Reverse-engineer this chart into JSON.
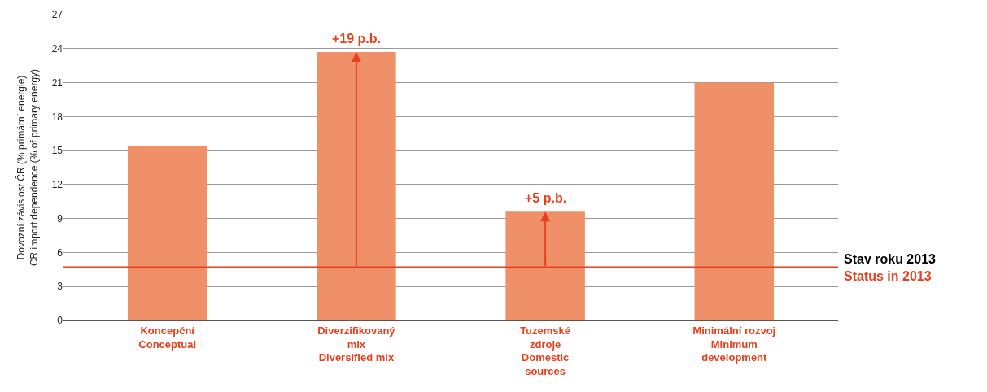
{
  "chart_data": {
    "type": "bar",
    "ylabel": "Dovozní závislost ČR (% primární energie)\nCR import dependence (% of primary energy)",
    "categories": [
      "Koncepční\nConceptual",
      "Diverzifikovaný\nmix\nDiversified mix",
      "Tuzemské\nzdroje\nDomestic\nsources",
      "Minimální rozvoj\nMinimum\ndevelopment"
    ],
    "values": [
      15.4,
      23.7,
      9.6,
      21
    ],
    "color": "#f09068",
    "ylim": [
      0,
      27
    ],
    "yticks": [
      0,
      3,
      6,
      9,
      12,
      15,
      18,
      21,
      24,
      27
    ],
    "grid": "y",
    "ref_lines": [
      {
        "axis": "y",
        "value": 4.7,
        "label": "Stav roku 2013\nStatus in 2013",
        "color": "#e8401c",
        "line_style": "solid"
      }
    ],
    "annotations": [
      {
        "text": "+19 p.b.",
        "x": "Diverzifikovaný\nmix\nDiversified mix",
        "y": 23.7
      },
      {
        "text": "+5 p.b.",
        "x": "Tuzemské\nzdroje\nDomestic\nsources",
        "y": 9.6
      }
    ]
  }
}
